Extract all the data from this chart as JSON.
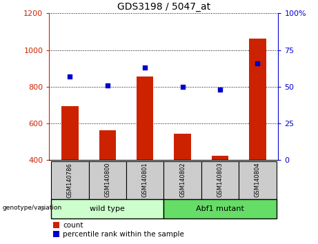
{
  "title": "GDS3198 / 5047_at",
  "samples": [
    "GSM140786",
    "GSM140800",
    "GSM140801",
    "GSM140802",
    "GSM140803",
    "GSM140804"
  ],
  "counts": [
    693,
    562,
    855,
    542,
    422,
    1063
  ],
  "percentile_ranks": [
    57,
    51,
    63,
    50,
    48,
    66
  ],
  "ylim_left": [
    400,
    1200
  ],
  "ylim_right": [
    0,
    100
  ],
  "yticks_left": [
    400,
    600,
    800,
    1000,
    1200
  ],
  "yticks_right": [
    0,
    25,
    50,
    75,
    100
  ],
  "bar_color": "#cc2200",
  "marker_color": "#0000cc",
  "bar_bottom": 400,
  "groups": [
    {
      "label": "wild type",
      "start": 0,
      "end": 2,
      "color": "#ccffcc"
    },
    {
      "label": "Abf1 mutant",
      "start": 3,
      "end": 5,
      "color": "#66dd66"
    }
  ],
  "legend_count_label": "count",
  "legend_percentile_label": "percentile rank within the sample",
  "xlabel_annotation": "genotype/variation",
  "sample_box_color": "#cccccc",
  "title_fontsize": 10,
  "tick_fontsize": 8,
  "sample_fontsize": 6,
  "group_fontsize": 8,
  "legend_fontsize": 7.5
}
